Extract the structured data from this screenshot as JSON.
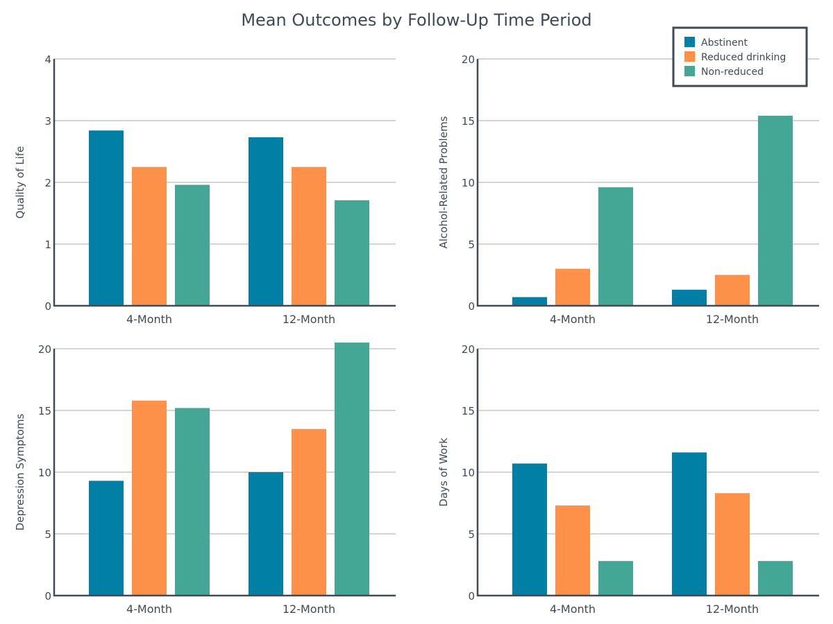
{
  "title": "Mean Outcomes by Follow-Up Time Period",
  "colors": {
    "Abstinent": "#017fa5",
    "Reduced drinking": "#fd914a",
    "Non-reduced": "#44a694",
    "text": "#3f4a56",
    "grid": "#a8a8a8"
  },
  "legend": {
    "placement": "top-right",
    "items": [
      "Abstinent",
      "Reduced drinking",
      "Non-reduced"
    ]
  },
  "chart_data": [
    {
      "type": "bar",
      "ylabel": "Quality of Life",
      "ylim": [
        0,
        4
      ],
      "yticks": [
        0,
        1,
        2,
        3,
        4
      ],
      "grid": true,
      "categories": [
        "4-Month",
        "12-Month"
      ],
      "series": [
        {
          "name": "Abstinent",
          "values": [
            2.84,
            2.73
          ]
        },
        {
          "name": "Reduced drinking",
          "values": [
            2.25,
            2.25
          ]
        },
        {
          "name": "Non-reduced",
          "values": [
            1.96,
            1.71
          ]
        }
      ]
    },
    {
      "type": "bar",
      "ylabel": "Alcohol-Related Problems",
      "ylim": [
        0,
        20
      ],
      "yticks": [
        0,
        5,
        10,
        15,
        20
      ],
      "grid": true,
      "categories": [
        "4-Month",
        "12-Month"
      ],
      "series": [
        {
          "name": "Abstinent",
          "values": [
            0.7,
            1.3
          ]
        },
        {
          "name": "Reduced drinking",
          "values": [
            3.0,
            2.5
          ]
        },
        {
          "name": "Non-reduced",
          "values": [
            9.6,
            15.4
          ]
        }
      ]
    },
    {
      "type": "bar",
      "ylabel": "Depression Symptoms",
      "ylim": [
        0,
        20
      ],
      "yticks": [
        0,
        5,
        10,
        15,
        20
      ],
      "grid": true,
      "categories": [
        "4-Month",
        "12-Month"
      ],
      "series": [
        {
          "name": "Abstinent",
          "values": [
            9.3,
            10.0
          ]
        },
        {
          "name": "Reduced drinking",
          "values": [
            15.8,
            13.5
          ]
        },
        {
          "name": "Non-reduced",
          "values": [
            15.2,
            20.5
          ]
        }
      ]
    },
    {
      "type": "bar",
      "ylabel": "Days of Work",
      "ylim": [
        0,
        20
      ],
      "yticks": [
        0,
        5,
        10,
        15,
        20
      ],
      "grid": true,
      "categories": [
        "4-Month",
        "12-Month"
      ],
      "series": [
        {
          "name": "Abstinent",
          "values": [
            10.7,
            11.6
          ]
        },
        {
          "name": "Reduced drinking",
          "values": [
            7.3,
            8.3
          ]
        },
        {
          "name": "Non-reduced",
          "values": [
            2.8,
            2.8
          ]
        }
      ]
    }
  ]
}
